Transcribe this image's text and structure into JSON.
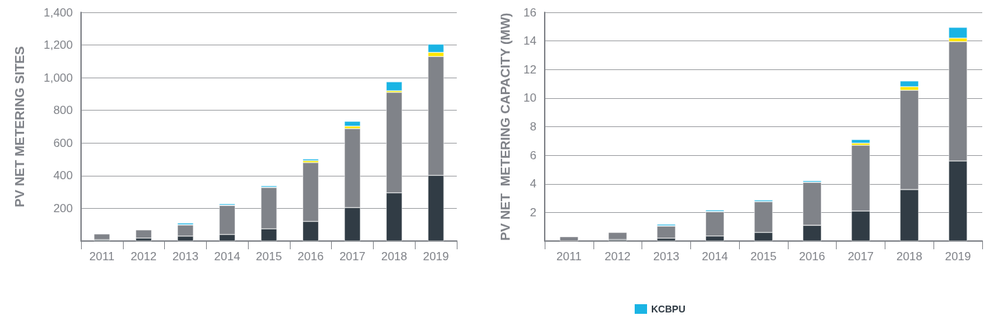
{
  "chart_data": [
    {
      "type": "bar",
      "stacked": true,
      "ylabel": "PV NET METERING SITES",
      "categories": [
        "2011",
        "2012",
        "2013",
        "2014",
        "2015",
        "2016",
        "2017",
        "2018",
        "2019"
      ],
      "ylim": [
        0,
        1400
      ],
      "yticks": [
        200,
        400,
        600,
        800,
        "1,000",
        "1,200",
        "1,400"
      ],
      "grid": "y",
      "legend": false,
      "series": [
        {
          "color": "#313c45",
          "values": [
            8,
            18,
            30,
            40,
            75,
            120,
            205,
            295,
            402
          ]
        },
        {
          "color": "#808389",
          "values": [
            35,
            50,
            68,
            178,
            253,
            360,
            483,
            615,
            728
          ]
        },
        {
          "color": "#ffe500",
          "values": [
            0,
            0,
            2,
            2,
            2,
            12,
            15,
            10,
            25
          ]
        },
        {
          "color": "#1ab4e4",
          "values": [
            0,
            0,
            10,
            8,
            8,
            10,
            30,
            55,
            50
          ]
        }
      ]
    },
    {
      "type": "bar",
      "stacked": true,
      "ylabel": "PV NET  METERING CAPACITY (MW)",
      "categories": [
        "2011",
        "2012",
        "2013",
        "2014",
        "2015",
        "2016",
        "2017",
        "2018",
        "2019"
      ],
      "ylim": [
        0,
        16
      ],
      "yticks": [
        2,
        4,
        6,
        8,
        10,
        12,
        14,
        16
      ],
      "grid": "y",
      "legend": "bottom left",
      "series": [
        {
          "color": "#313c45",
          "values": [
            null,
            0.1,
            0.2,
            0.35,
            0.6,
            1.1,
            2.1,
            3.6,
            5.6
          ]
        },
        {
          "color": "#808389",
          "values": [
            0.3,
            0.5,
            0.85,
            1.7,
            2.15,
            3.0,
            4.6,
            6.95,
            8.35
          ]
        },
        {
          "color": "#ffe500",
          "values": [
            0,
            0,
            0.02,
            0.02,
            0.02,
            0.02,
            0.15,
            0.25,
            0.25
          ]
        },
        {
          "name": "KCBPU",
          "color": "#1ab4e4",
          "values": [
            0,
            0,
            0.1,
            0.1,
            0.1,
            0.1,
            0.25,
            0.4,
            0.75
          ]
        }
      ]
    }
  ]
}
